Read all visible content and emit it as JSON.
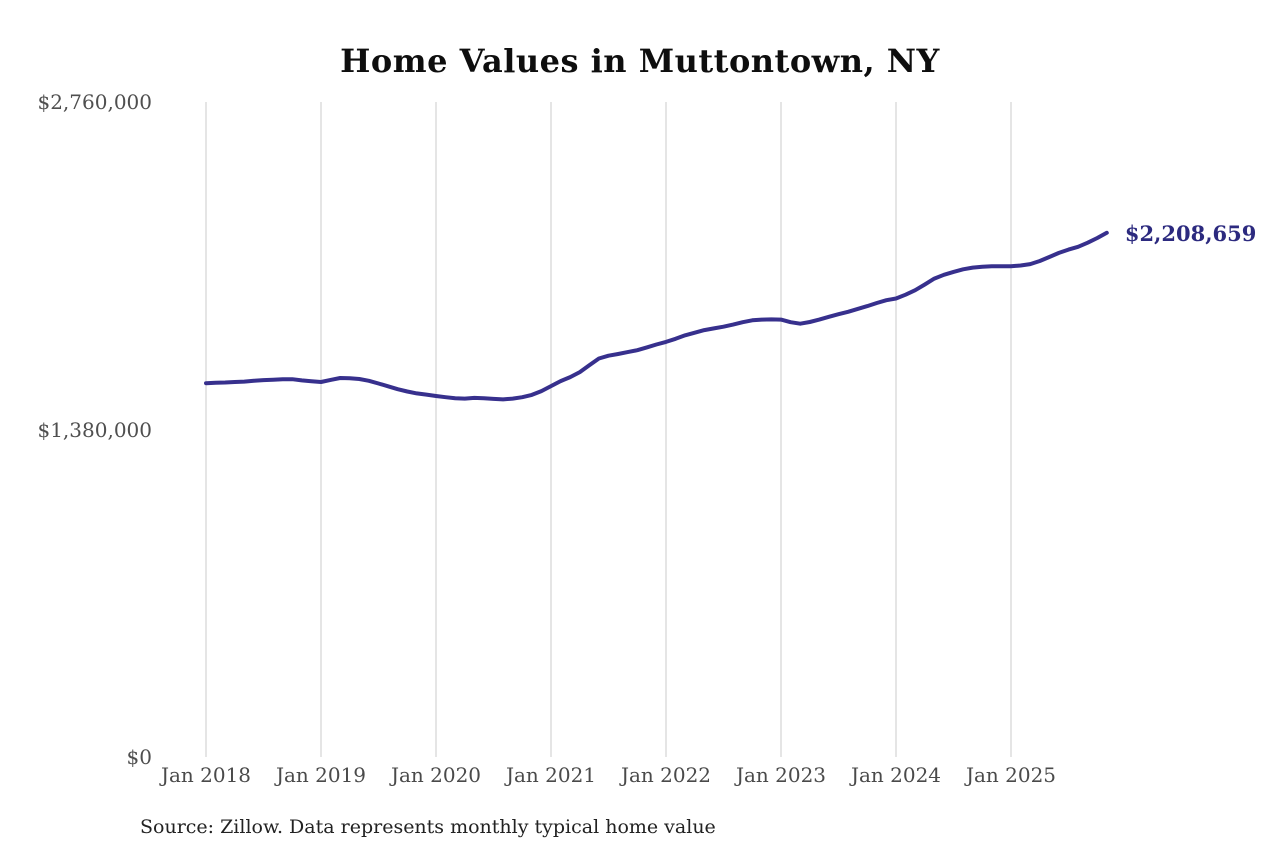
{
  "chart_data": {
    "type": "line",
    "title": "Home Values in Muttontown, NY",
    "source_note": "Source: Zillow. Data represents monthly typical home value",
    "series_name": "Monthly typical home value",
    "x_start": "2018-01",
    "x_end": "2025-11",
    "frequency": "monthly",
    "values": [
      1575000,
      1577000,
      1578000,
      1580000,
      1582000,
      1585000,
      1588000,
      1590000,
      1592000,
      1592000,
      1587000,
      1583000,
      1580000,
      1589000,
      1597000,
      1596000,
      1593000,
      1585000,
      1574000,
      1562000,
      1550000,
      1540000,
      1532000,
      1527000,
      1521000,
      1516000,
      1512000,
      1510000,
      1513000,
      1512000,
      1509000,
      1507000,
      1510000,
      1516000,
      1526000,
      1542000,
      1563000,
      1584000,
      1601000,
      1622000,
      1651000,
      1679000,
      1691000,
      1698000,
      1706000,
      1714000,
      1726000,
      1738000,
      1749000,
      1762000,
      1777000,
      1788000,
      1799000,
      1806000,
      1813000,
      1822000,
      1832000,
      1840000,
      1843000,
      1844000,
      1843000,
      1832000,
      1826000,
      1833000,
      1843000,
      1855000,
      1866000,
      1876000,
      1888000,
      1900000,
      1913000,
      1925000,
      1932000,
      1948000,
      1967000,
      1991000,
      2016000,
      2032000,
      2044000,
      2055000,
      2062000,
      2066000,
      2068000,
      2068000,
      2068000,
      2071000,
      2077000,
      2090000,
      2107000,
      2124000,
      2138000,
      2150000,
      2167000,
      2187000,
      2208659
    ],
    "end_value": 2208659,
    "end_label": "$2,208,659",
    "ylim": [
      0,
      2760000
    ],
    "y_ticks": [
      {
        "value": 0,
        "label": "$0"
      },
      {
        "value": 1380000,
        "label": "$1,380,000"
      },
      {
        "value": 2760000,
        "label": "$2,760,000"
      }
    ],
    "x_ticks": [
      {
        "month_index": 0,
        "label": "Jan 2018"
      },
      {
        "month_index": 12,
        "label": "Jan 2019"
      },
      {
        "month_index": 24,
        "label": "Jan 2020"
      },
      {
        "month_index": 36,
        "label": "Jan 2021"
      },
      {
        "month_index": 48,
        "label": "Jan 2022"
      },
      {
        "month_index": 60,
        "label": "Jan 2023"
      },
      {
        "month_index": 72,
        "label": "Jan 2024"
      },
      {
        "month_index": 84,
        "label": "Jan 2025"
      }
    ],
    "grid": "vertical-only",
    "legend": "none",
    "line_color": "#37308d",
    "end_label_color": "#2c2a7f",
    "grid_color": "#cbcbcb",
    "axis_label_color": "#4f4f4f"
  }
}
